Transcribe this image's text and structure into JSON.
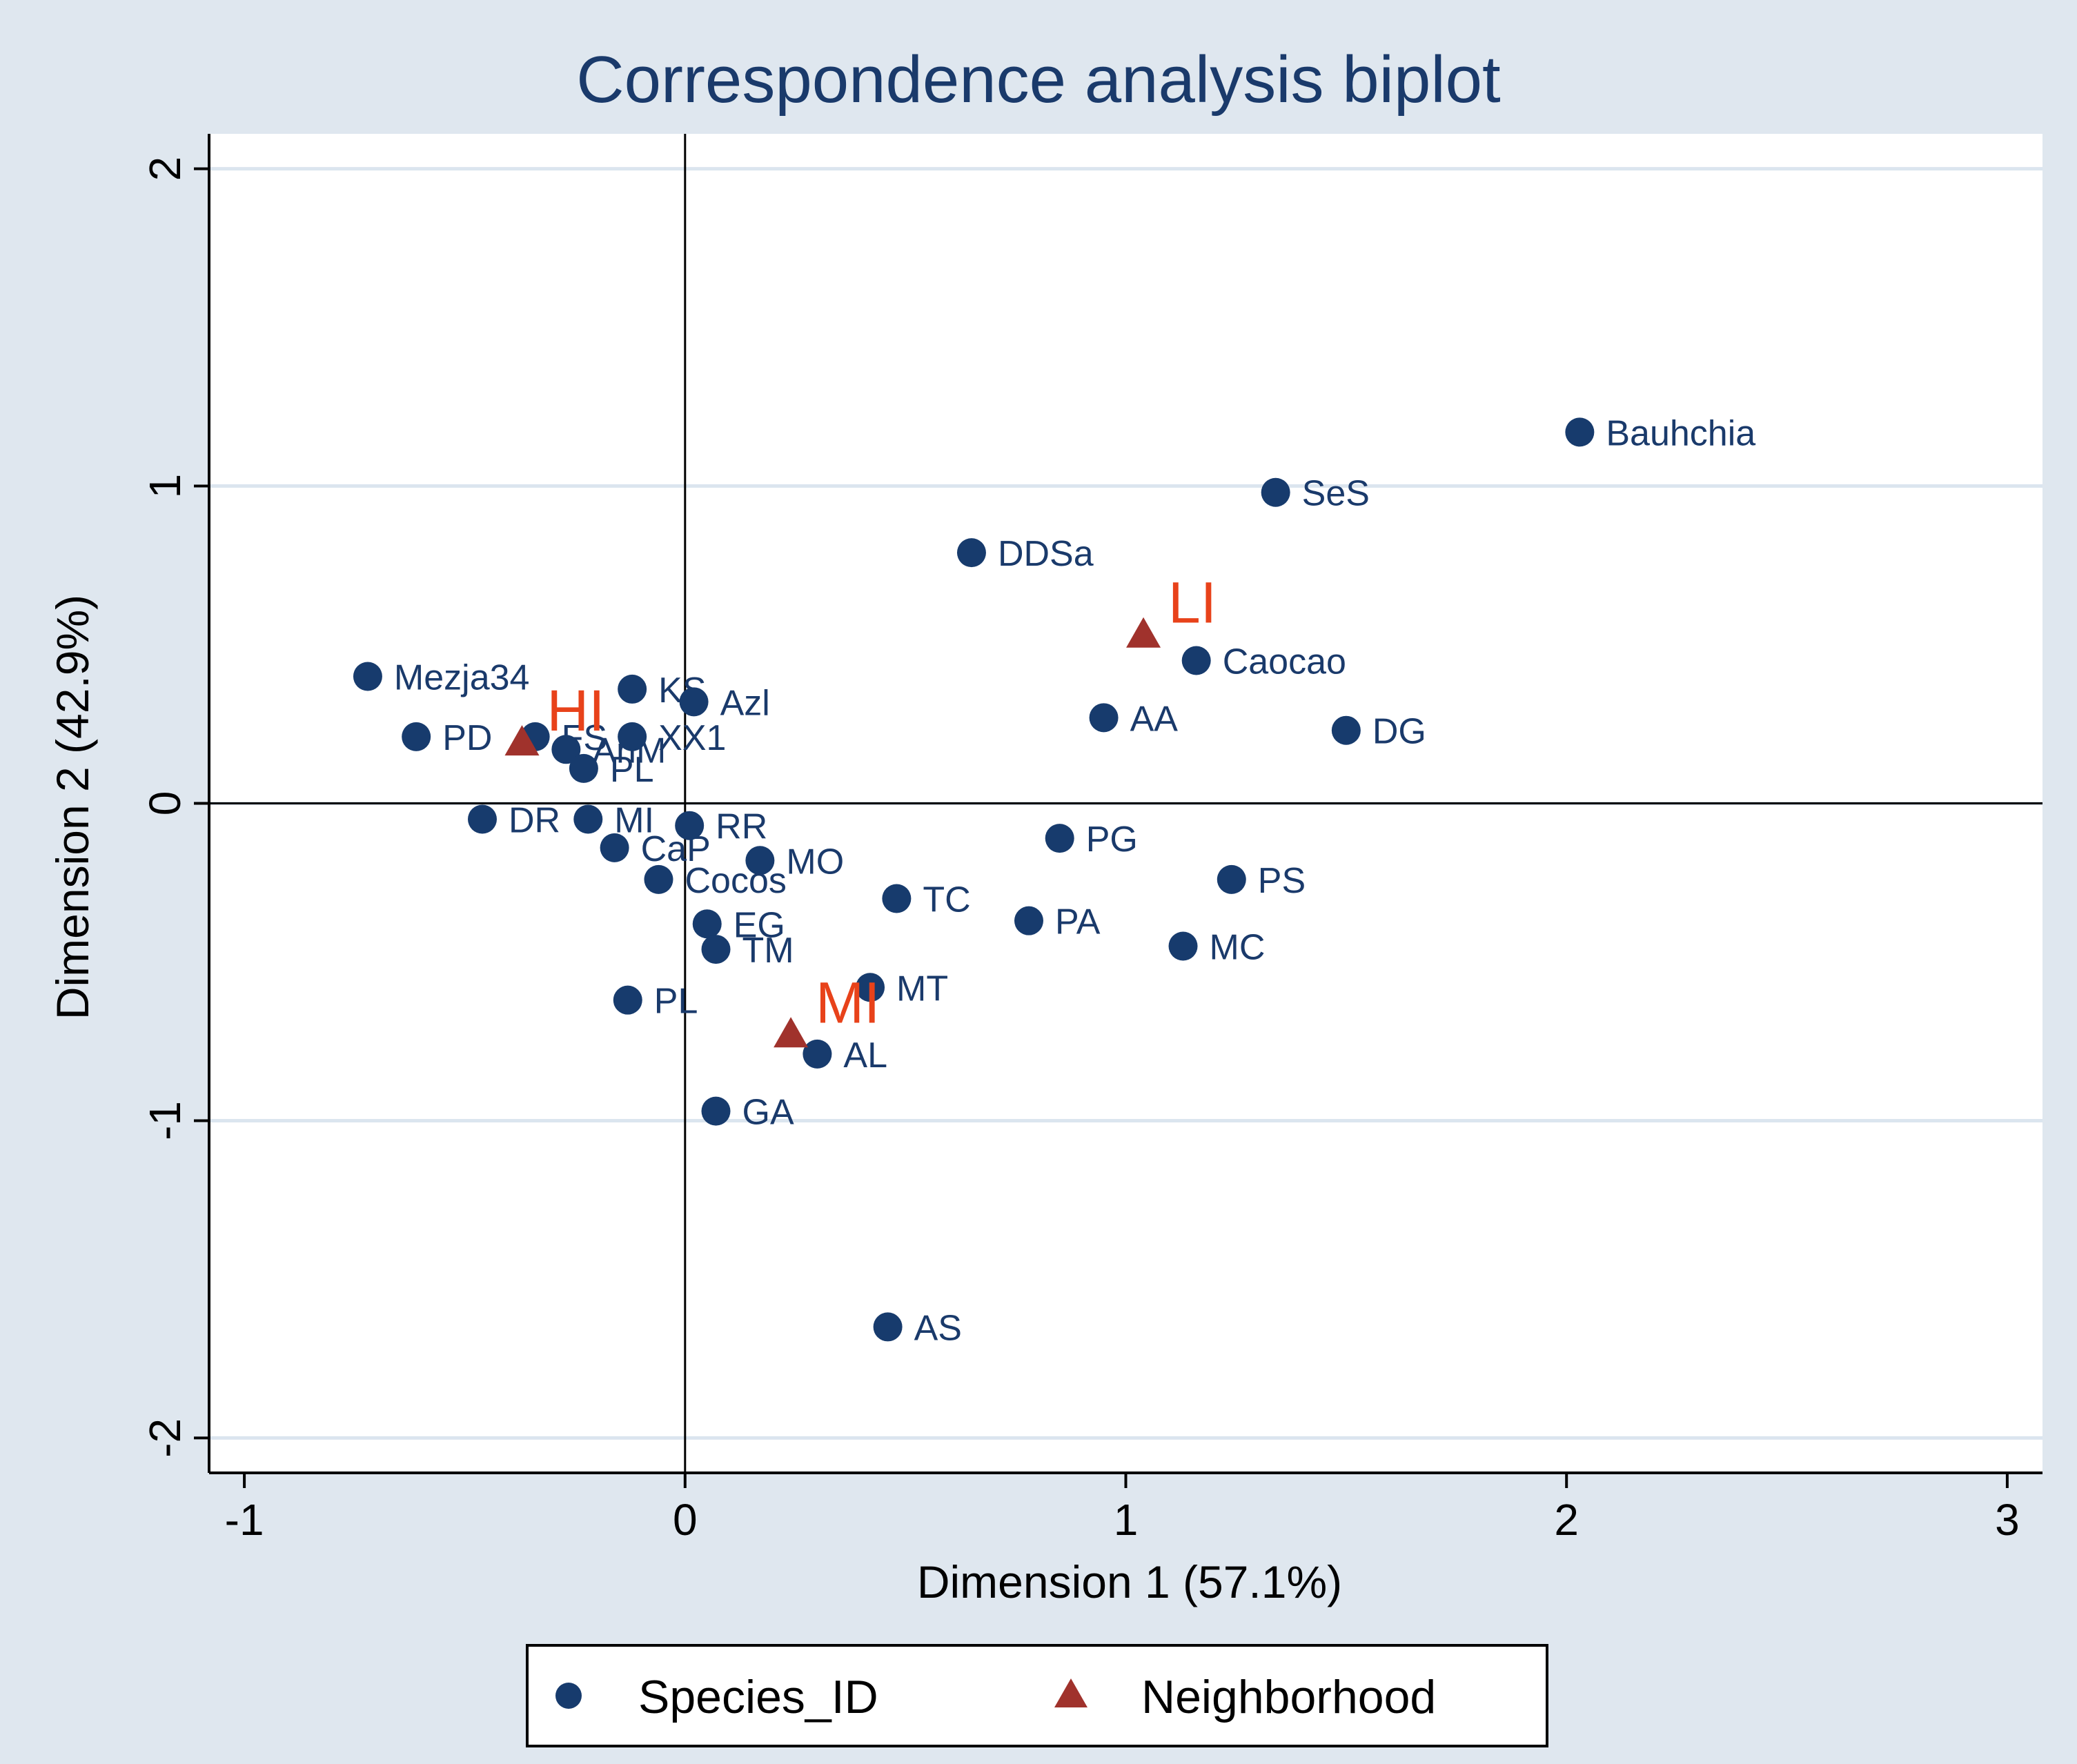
{
  "chart_data": {
    "type": "scatter",
    "title": "Correspondence analysis biplot",
    "xlabel": "Dimension 1 (57.1%)",
    "ylabel": "Dimension 2 (42.9%)",
    "xlim": [
      -1.08,
      3.08
    ],
    "ylim": [
      -2.11,
      2.11
    ],
    "xticks": [
      -1,
      0,
      1,
      2,
      3
    ],
    "yticks": [
      -2,
      -1,
      0,
      1,
      2
    ],
    "grid": "horizontal",
    "reference_lines": {
      "x": 0,
      "y": 0
    },
    "legend_position": "bottom",
    "colors": {
      "species": "#173b6d",
      "neighborhood_marker": "#a0322c",
      "neighborhood_label": "#e8421a",
      "plot_bg": "#ffffff",
      "outer_bg": "#dfe7ef",
      "grid": "#dbe5ef"
    },
    "series": [
      {
        "name": "Species_ID",
        "marker": "circle",
        "points": [
          {
            "label": "Mezja34",
            "x": -0.72,
            "y": 0.4
          },
          {
            "label": "PD",
            "x": -0.61,
            "y": 0.21
          },
          {
            "label": "FS",
            "x": -0.34,
            "y": 0.21
          },
          {
            "label": "AnM",
            "x": -0.27,
            "y": 0.17
          },
          {
            "label": "PL",
            "x": -0.23,
            "y": 0.11
          },
          {
            "label": "KS",
            "x": -0.12,
            "y": 0.36
          },
          {
            "label": "XX1",
            "x": -0.12,
            "y": 0.21
          },
          {
            "label": "Azl",
            "x": 0.02,
            "y": 0.32
          },
          {
            "label": "DR",
            "x": -0.46,
            "y": -0.05
          },
          {
            "label": "MI",
            "x": -0.22,
            "y": -0.05
          },
          {
            "label": "CaP",
            "x": -0.16,
            "y": -0.14
          },
          {
            "label": "RR",
            "x": 0.01,
            "y": -0.07
          },
          {
            "label": "MO",
            "x": 0.17,
            "y": -0.18
          },
          {
            "label": "Cocos",
            "x": -0.06,
            "y": -0.24
          },
          {
            "label": "EG",
            "x": 0.05,
            "y": -0.38
          },
          {
            "label": "TM",
            "x": 0.07,
            "y": -0.46
          },
          {
            "label": "TC",
            "x": 0.48,
            "y": -0.3
          },
          {
            "label": "PA",
            "x": 0.78,
            "y": -0.37
          },
          {
            "label": "PG",
            "x": 0.85,
            "y": -0.11
          },
          {
            "label": "PS",
            "x": 1.24,
            "y": -0.24
          },
          {
            "label": "MC",
            "x": 1.13,
            "y": -0.45
          },
          {
            "label": "MT",
            "x": 0.42,
            "y": -0.58
          },
          {
            "label": "PL",
            "x": -0.13,
            "y": -0.62
          },
          {
            "label": "AL",
            "x": 0.3,
            "y": -0.79
          },
          {
            "label": "GA",
            "x": 0.07,
            "y": -0.97
          },
          {
            "label": "AS",
            "x": 0.46,
            "y": -1.65
          },
          {
            "label": "AA",
            "x": 0.95,
            "y": 0.27
          },
          {
            "label": "Caocao",
            "x": 1.16,
            "y": 0.45
          },
          {
            "label": "DG",
            "x": 1.5,
            "y": 0.23
          },
          {
            "label": "SeS",
            "x": 1.34,
            "y": 0.98
          },
          {
            "label": "DDSa",
            "x": 0.65,
            "y": 0.79
          },
          {
            "label": "Bauhchia",
            "x": 2.03,
            "y": 1.17
          }
        ]
      },
      {
        "name": "Neighborhood",
        "marker": "triangle",
        "points": [
          {
            "label": "HI",
            "x": -0.37,
            "y": 0.19
          },
          {
            "label": "LI",
            "x": 1.04,
            "y": 0.53
          },
          {
            "label": "MI",
            "x": 0.24,
            "y": -0.73
          }
        ]
      }
    ]
  },
  "legend": {
    "items": [
      "Species_ID",
      "Neighborhood"
    ]
  }
}
